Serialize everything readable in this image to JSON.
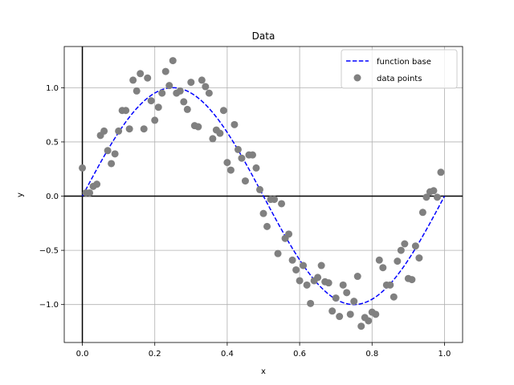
{
  "chart_data": {
    "type": "scatter",
    "title": "Data",
    "xlabel": "x",
    "ylabel": "y",
    "xlim": [
      -0.05,
      1.05
    ],
    "ylim": [
      -1.35,
      1.38
    ],
    "xticks": [
      0.0,
      0.2,
      0.4,
      0.6,
      0.8,
      1.0
    ],
    "xtick_labels": [
      "0.0",
      "0.2",
      "0.4",
      "0.6",
      "0.8",
      "1.0"
    ],
    "yticks": [
      -1.0,
      -0.5,
      0.0,
      0.5,
      1.0
    ],
    "ytick_labels": [
      "−1.0",
      "−0.5",
      "0.0",
      "0.5",
      "1.0"
    ],
    "grid": true,
    "legend_position": "top-right",
    "reference_lines": {
      "x": 0,
      "y": 0
    },
    "series": [
      {
        "name": "function base",
        "kind": "line",
        "style": "dashed",
        "color": "#0000ff",
        "function": "sin(2*pi*x)",
        "x_range": [
          0,
          1
        ]
      },
      {
        "name": "data points",
        "kind": "scatter",
        "color": "#808080",
        "points": [
          [
            0.0,
            0.26
          ],
          [
            0.01,
            0.03
          ],
          [
            0.02,
            0.03
          ],
          [
            0.03,
            0.09
          ],
          [
            0.04,
            0.11
          ],
          [
            0.05,
            0.56
          ],
          [
            0.06,
            0.6
          ],
          [
            0.07,
            0.42
          ],
          [
            0.08,
            0.3
          ],
          [
            0.09,
            0.39
          ],
          [
            0.1,
            0.6
          ],
          [
            0.11,
            0.79
          ],
          [
            0.12,
            0.79
          ],
          [
            0.13,
            0.62
          ],
          [
            0.14,
            1.07
          ],
          [
            0.15,
            0.97
          ],
          [
            0.16,
            1.13
          ],
          [
            0.17,
            0.62
          ],
          [
            0.18,
            1.09
          ],
          [
            0.19,
            0.88
          ],
          [
            0.2,
            0.7
          ],
          [
            0.21,
            0.82
          ],
          [
            0.22,
            0.95
          ],
          [
            0.23,
            1.15
          ],
          [
            0.24,
            1.02
          ],
          [
            0.25,
            1.25
          ],
          [
            0.26,
            0.95
          ],
          [
            0.27,
            0.97
          ],
          [
            0.28,
            0.87
          ],
          [
            0.29,
            0.8
          ],
          [
            0.3,
            1.05
          ],
          [
            0.31,
            0.65
          ],
          [
            0.32,
            0.64
          ],
          [
            0.33,
            1.07
          ],
          [
            0.34,
            1.01
          ],
          [
            0.35,
            0.95
          ],
          [
            0.36,
            0.53
          ],
          [
            0.37,
            0.61
          ],
          [
            0.38,
            0.58
          ],
          [
            0.39,
            0.79
          ],
          [
            0.4,
            0.31
          ],
          [
            0.41,
            0.24
          ],
          [
            0.42,
            0.66
          ],
          [
            0.43,
            0.43
          ],
          [
            0.44,
            0.35
          ],
          [
            0.45,
            0.14
          ],
          [
            0.46,
            0.38
          ],
          [
            0.47,
            0.38
          ],
          [
            0.48,
            0.26
          ],
          [
            0.49,
            0.06
          ],
          [
            0.5,
            -0.16
          ],
          [
            0.51,
            -0.28
          ],
          [
            0.52,
            -0.03
          ],
          [
            0.53,
            -0.03
          ],
          [
            0.54,
            -0.53
          ],
          [
            0.55,
            -0.07
          ],
          [
            0.56,
            -0.39
          ],
          [
            0.57,
            -0.35
          ],
          [
            0.58,
            -0.59
          ],
          [
            0.59,
            -0.68
          ],
          [
            0.6,
            -0.78
          ],
          [
            0.61,
            -0.64
          ],
          [
            0.62,
            -0.82
          ],
          [
            0.63,
            -0.99
          ],
          [
            0.64,
            -0.78
          ],
          [
            0.65,
            -0.75
          ],
          [
            0.66,
            -0.64
          ],
          [
            0.67,
            -0.79
          ],
          [
            0.68,
            -0.8
          ],
          [
            0.69,
            -1.06
          ],
          [
            0.7,
            -0.94
          ],
          [
            0.71,
            -1.11
          ],
          [
            0.72,
            -0.82
          ],
          [
            0.73,
            -0.89
          ],
          [
            0.74,
            -1.09
          ],
          [
            0.75,
            -0.97
          ],
          [
            0.76,
            -0.74
          ],
          [
            0.77,
            -1.2
          ],
          [
            0.78,
            -1.12
          ],
          [
            0.79,
            -1.15
          ],
          [
            0.8,
            -1.07
          ],
          [
            0.81,
            -1.09
          ],
          [
            0.82,
            -0.59
          ],
          [
            0.83,
            -0.66
          ],
          [
            0.84,
            -0.82
          ],
          [
            0.85,
            -0.82
          ],
          [
            0.86,
            -0.93
          ],
          [
            0.87,
            -0.6
          ],
          [
            0.88,
            -0.5
          ],
          [
            0.89,
            -0.44
          ],
          [
            0.9,
            -0.76
          ],
          [
            0.91,
            -0.77
          ],
          [
            0.92,
            -0.46
          ],
          [
            0.93,
            -0.57
          ],
          [
            0.94,
            -0.15
          ],
          [
            0.95,
            -0.01
          ],
          [
            0.96,
            0.04
          ],
          [
            0.97,
            0.05
          ],
          [
            0.98,
            -0.01
          ],
          [
            0.99,
            0.22
          ]
        ]
      }
    ]
  }
}
